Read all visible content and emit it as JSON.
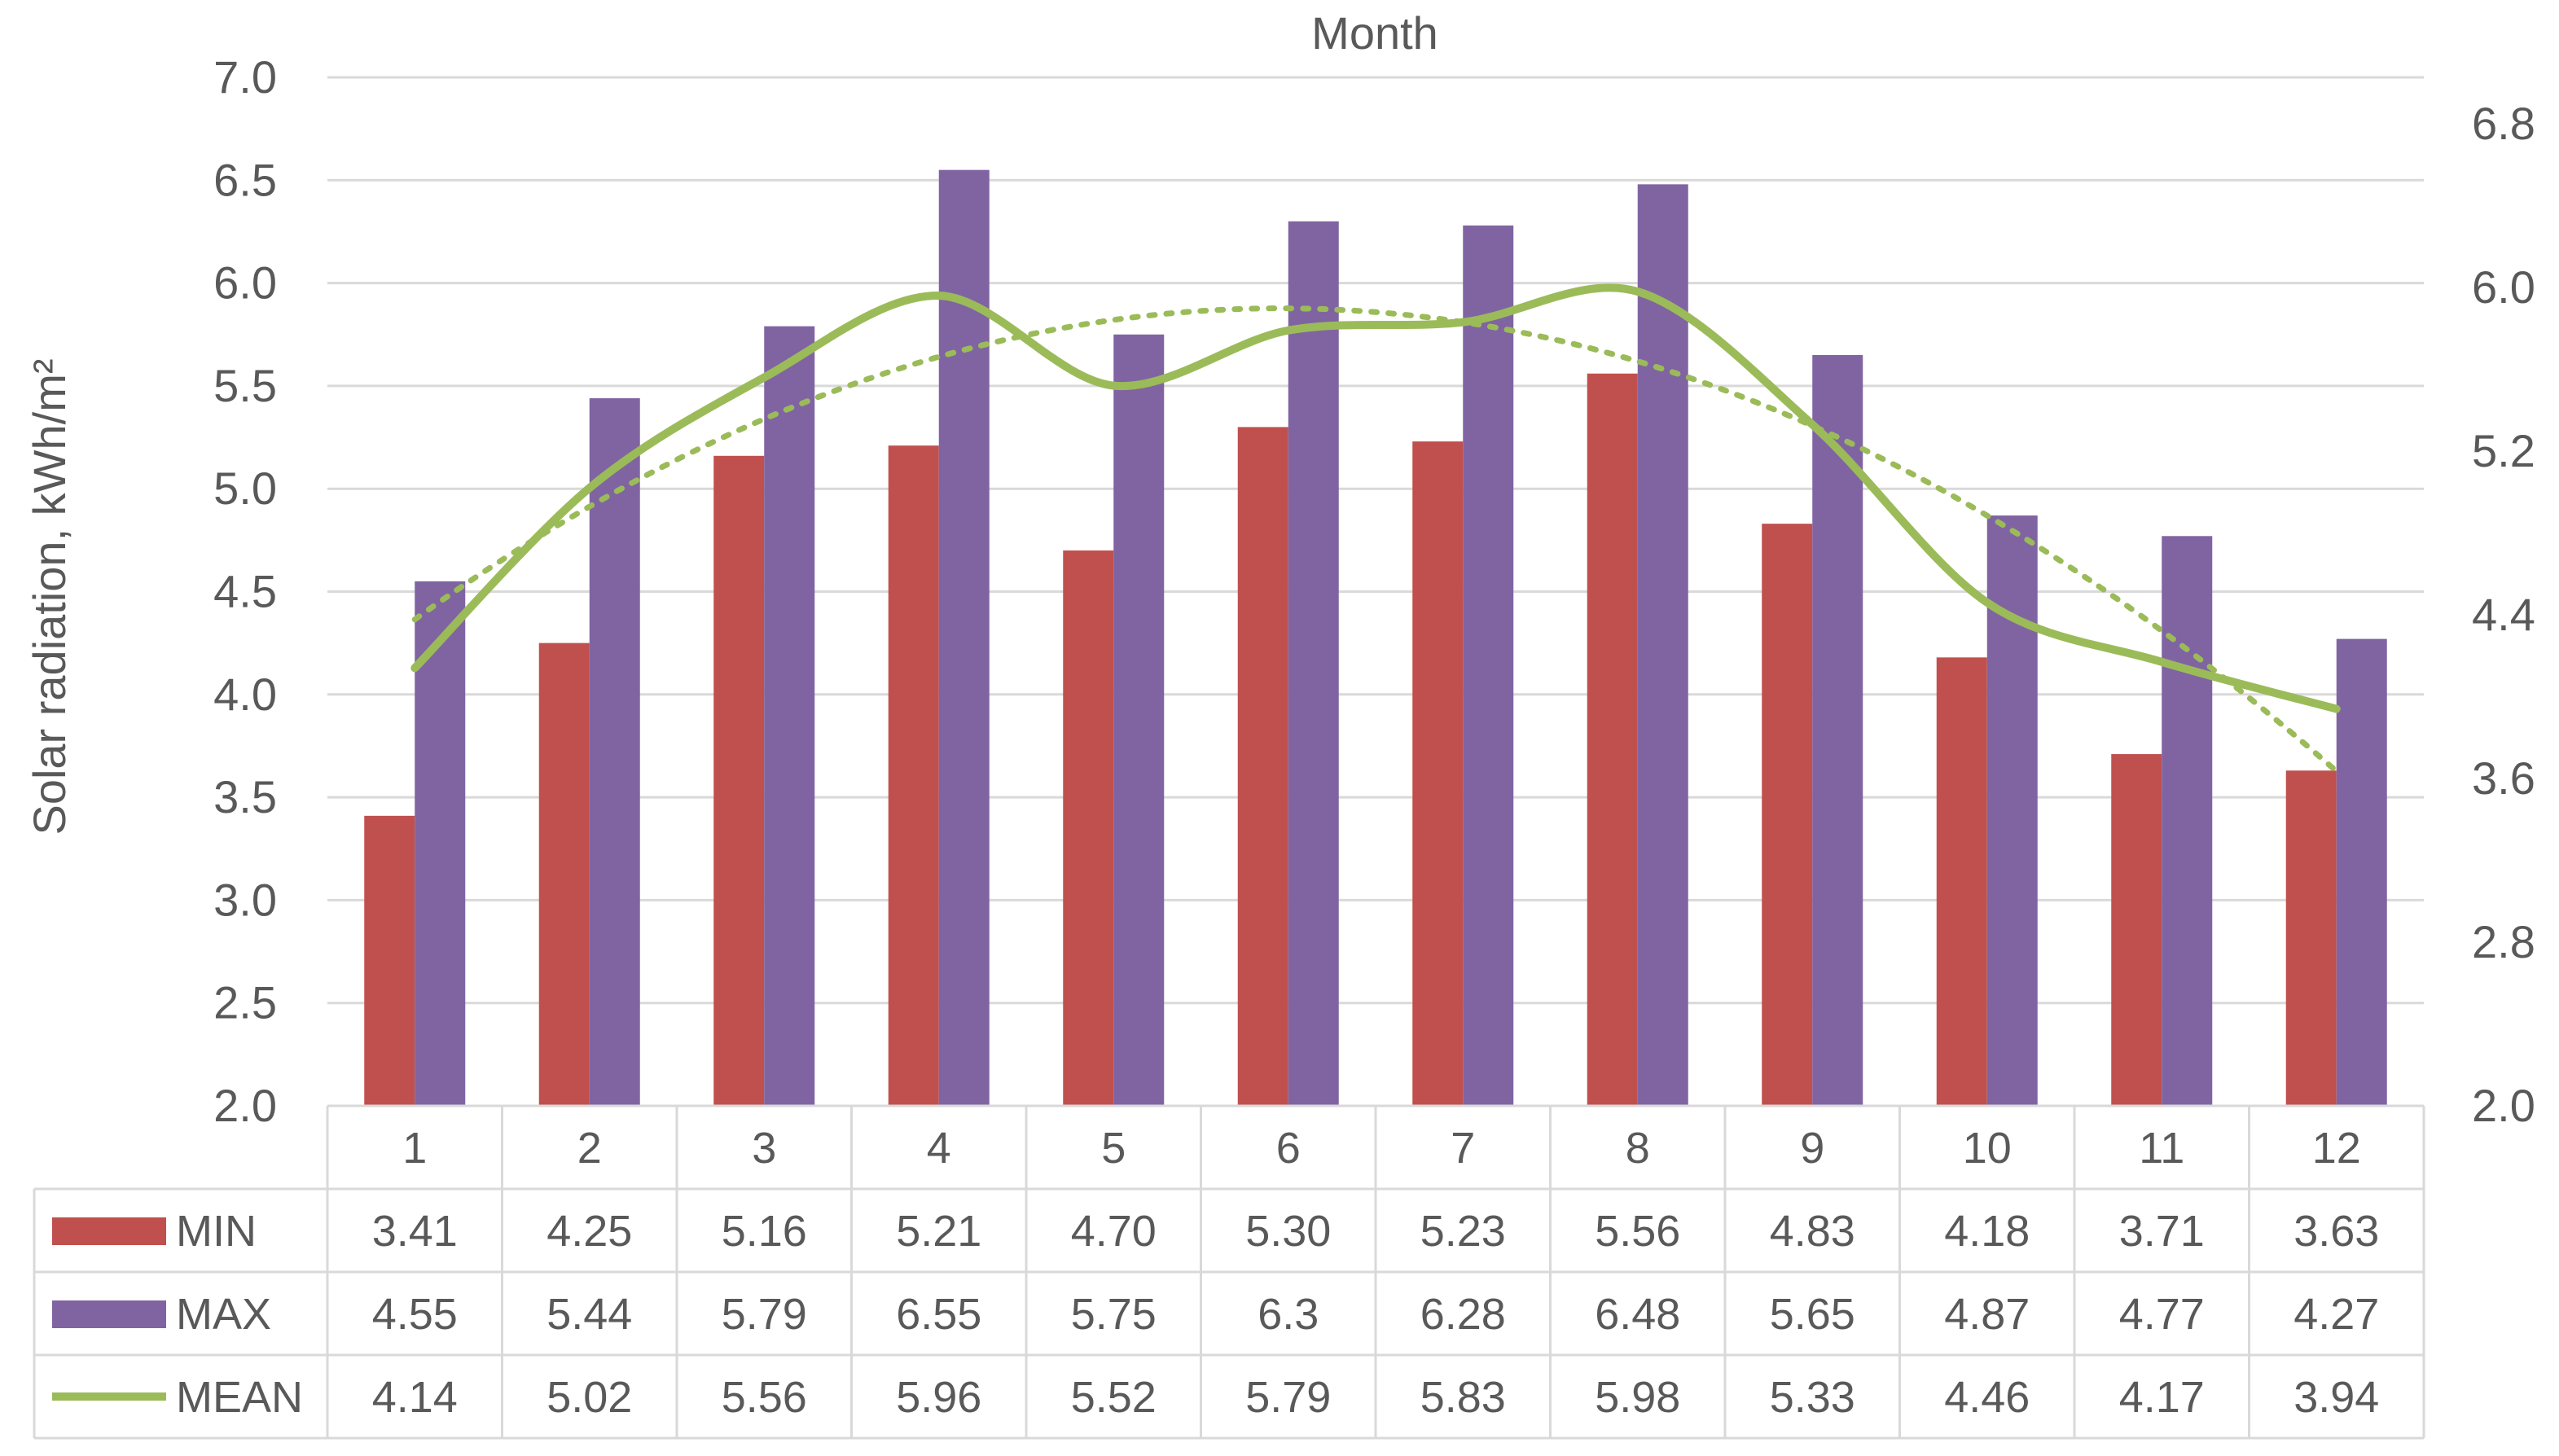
{
  "chart_data": {
    "type": "bar",
    "title": "Month",
    "xlabel": "",
    "ylabel": "Solar radiation, kWh/m²",
    "categories": [
      "1",
      "2",
      "3",
      "4",
      "5",
      "6",
      "7",
      "8",
      "9",
      "10",
      "11",
      "12"
    ],
    "ylim": [
      2.0,
      7.0
    ],
    "y_ticks": [
      "2.0",
      "2.5",
      "3.0",
      "3.5",
      "4.0",
      "4.5",
      "5.0",
      "5.5",
      "6.0",
      "6.5",
      "7.0"
    ],
    "y2lim": [
      2.0,
      6.8
    ],
    "y2_ticks": [
      "2.0",
      "2.8",
      "3.6",
      "4.4",
      "5.2",
      "6.0",
      "6.8"
    ],
    "grid": true,
    "legend": "data-table-left",
    "series": [
      {
        "name": "MIN",
        "type": "bar",
        "color": "#c0504d",
        "axis": "left",
        "values": [
          3.41,
          4.25,
          5.16,
          5.21,
          4.7,
          5.3,
          5.23,
          5.56,
          4.83,
          4.18,
          3.71,
          3.63
        ],
        "labels": [
          "3.41",
          "4.25",
          "5.16",
          "5.21",
          "4.70",
          "5.30",
          "5.23",
          "5.56",
          "4.83",
          "4.18",
          "3.71",
          "3.63"
        ]
      },
      {
        "name": "MAX",
        "type": "bar",
        "color": "#8064a2",
        "axis": "left",
        "values": [
          4.55,
          5.44,
          5.79,
          6.55,
          5.75,
          6.3,
          6.28,
          6.48,
          5.65,
          4.87,
          4.77,
          4.27
        ],
        "labels": [
          "4.55",
          "5.44",
          "5.79",
          "6.55",
          "5.75",
          "6.3",
          "6.28",
          "6.48",
          "5.65",
          "4.87",
          "4.77",
          "4.27"
        ]
      },
      {
        "name": "MEAN",
        "type": "line",
        "color": "#9bbb59",
        "axis": "right",
        "smooth": true,
        "values": [
          4.14,
          5.02,
          5.56,
          5.96,
          5.52,
          5.79,
          5.83,
          5.98,
          5.33,
          4.46,
          4.17,
          3.94
        ],
        "labels": [
          "4.14",
          "5.02",
          "5.56",
          "5.96",
          "5.52",
          "5.79",
          "5.83",
          "5.98",
          "5.33",
          "4.46",
          "4.17",
          "3.94"
        ]
      }
    ],
    "trendline": {
      "of": "MEAN",
      "type": "polynomial",
      "order": 2,
      "style": "dotted",
      "color": "#9bbb59"
    }
  }
}
